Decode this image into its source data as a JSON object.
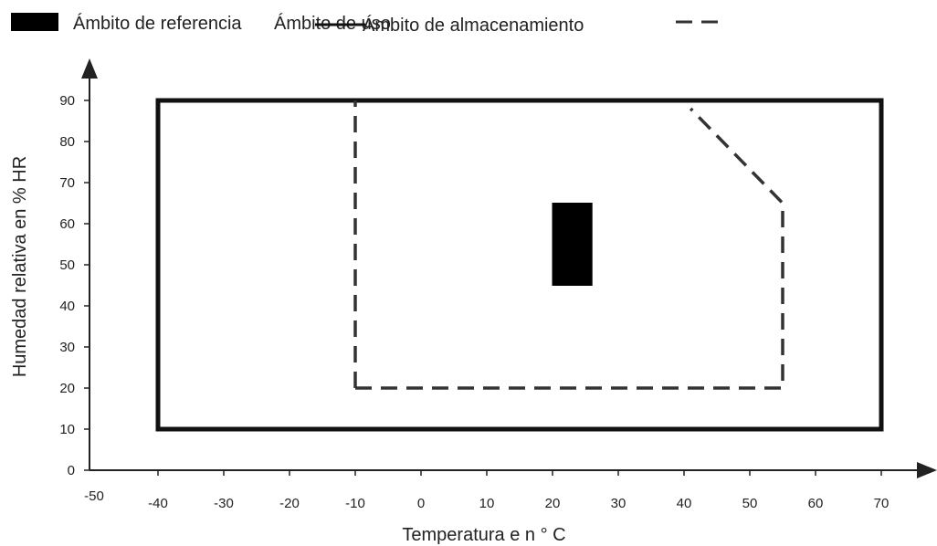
{
  "chart_data": {
    "type": "area",
    "title": "",
    "xlabel": "Temperatura e n ° C",
    "ylabel": "Humedad relativa en % HR",
    "xlim": [
      -50,
      75
    ],
    "ylim": [
      0,
      95
    ],
    "x_ticks": [
      -50,
      -40,
      -30,
      -20,
      -10,
      0,
      10,
      20,
      30,
      40,
      50,
      60,
      70
    ],
    "y_ticks": [
      0,
      10,
      20,
      30,
      40,
      50,
      60,
      70,
      80,
      90
    ],
    "grid": false,
    "legend_position": "top-left",
    "legend": [
      {
        "label": "Ámbito de referencia",
        "swatch": "filled"
      },
      {
        "label": "Ámbito de uso",
        "swatch": "solid-line"
      },
      {
        "label": "Ámbito de almacenamiento",
        "swatch": "dashed-line"
      }
    ],
    "series": [
      {
        "name": "Ámbito de referencia",
        "style": "filled",
        "color": "#000000",
        "points": [
          [
            20,
            45
          ],
          [
            26,
            45
          ],
          [
            26,
            65
          ],
          [
            20,
            65
          ]
        ]
      },
      {
        "name": "Ámbito de uso",
        "style": "solid",
        "color": "#111111",
        "points": [
          [
            -40,
            10
          ],
          [
            70,
            10
          ],
          [
            70,
            90
          ],
          [
            -40,
            90
          ]
        ]
      },
      {
        "name": "Ámbito de almacenamiento",
        "style": "dashed",
        "color": "#333333",
        "points": [
          [
            -10,
            20
          ],
          [
            55,
            20
          ],
          [
            55,
            65
          ],
          [
            41,
            88
          ]
        ],
        "open_segments": [
          [
            -10,
            20
          ],
          [
            -10,
            90
          ]
        ]
      }
    ]
  }
}
